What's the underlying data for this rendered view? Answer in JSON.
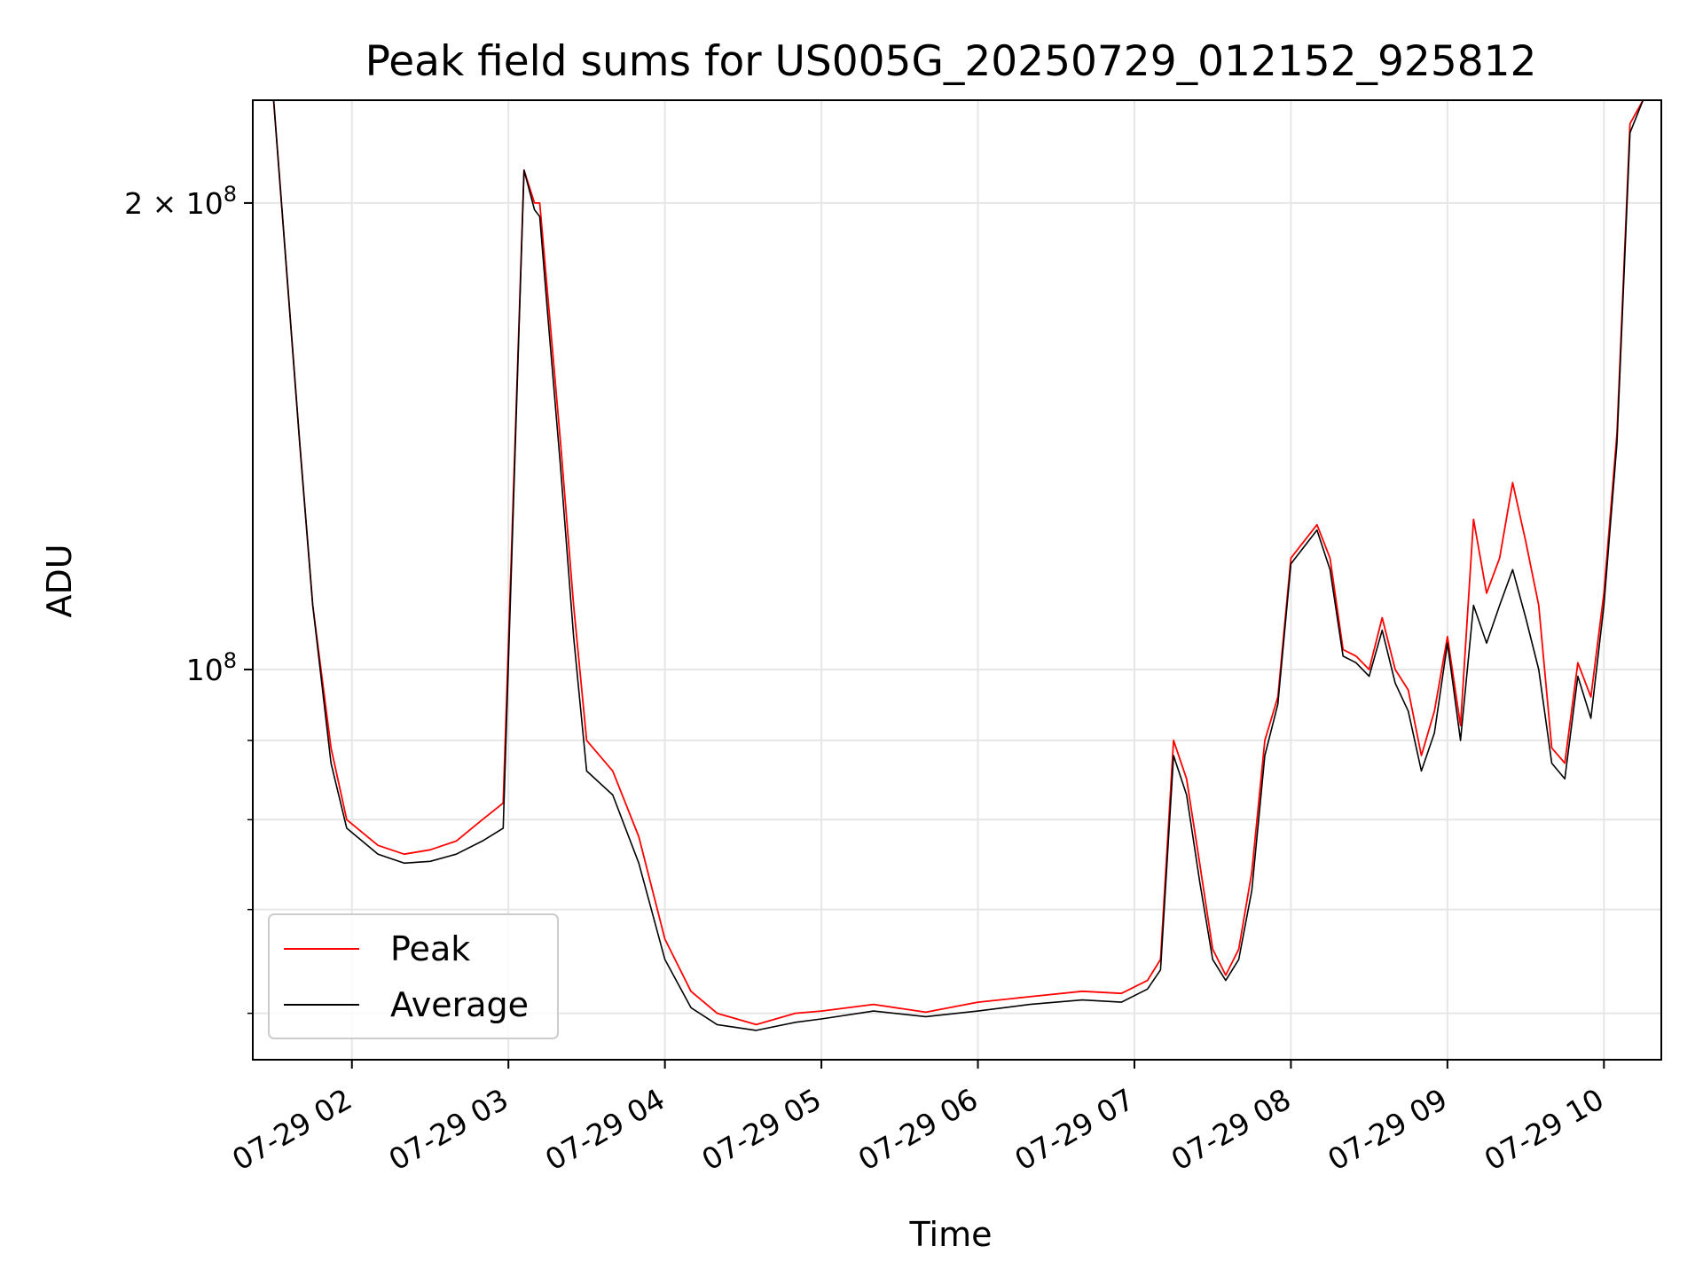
{
  "chart_data": {
    "type": "line",
    "title": "Peak field sums for US005G_20250729_012152_925812",
    "xlabel": "Time",
    "ylabel": "ADU",
    "x_range": [
      "2025-07-29 01:22",
      "2025-07-29 10:22"
    ],
    "y_scale": "log",
    "ylim": [
      56000000,
      233000000
    ],
    "grid": true,
    "legend_position": "lower-left",
    "x_ticks": [
      {
        "time": "2025-07-29 02:00",
        "label": "07-29 02"
      },
      {
        "time": "2025-07-29 03:00",
        "label": "07-29 03"
      },
      {
        "time": "2025-07-29 04:00",
        "label": "07-29 04"
      },
      {
        "time": "2025-07-29 05:00",
        "label": "07-29 05"
      },
      {
        "time": "2025-07-29 06:00",
        "label": "07-29 06"
      },
      {
        "time": "2025-07-29 07:00",
        "label": "07-29 07"
      },
      {
        "time": "2025-07-29 08:00",
        "label": "07-29 08"
      },
      {
        "time": "2025-07-29 09:00",
        "label": "07-29 09"
      },
      {
        "time": "2025-07-29 10:00",
        "label": "07-29 10"
      }
    ],
    "y_major_ticks": [
      {
        "value": 100000000,
        "mantissa": "",
        "exponent": "8",
        "base": "10"
      },
      {
        "value": 200000000,
        "mantissa": "2",
        "exponent": "8",
        "base": "10"
      }
    ],
    "y_minor_ticks": [
      60000000,
      70000000,
      80000000,
      90000000
    ],
    "series": [
      {
        "name": "Peak",
        "color": "#ff0000",
        "x": [
          "2025-07-29 01:22",
          "2025-07-29 01:30",
          "2025-07-29 01:34",
          "2025-07-29 01:40",
          "2025-07-29 01:45",
          "2025-07-29 01:52",
          "2025-07-29 01:58",
          "2025-07-29 02:10",
          "2025-07-29 02:20",
          "2025-07-29 02:30",
          "2025-07-29 02:40",
          "2025-07-29 02:50",
          "2025-07-29 02:58",
          "2025-07-29 03:06",
          "2025-07-29 03:10",
          "2025-07-29 03:12",
          "2025-07-29 03:15",
          "2025-07-29 03:20",
          "2025-07-29 03:25",
          "2025-07-29 03:30",
          "2025-07-29 03:40",
          "2025-07-29 03:50",
          "2025-07-29 04:00",
          "2025-07-29 04:10",
          "2025-07-29 04:20",
          "2025-07-29 04:35",
          "2025-07-29 04:50",
          "2025-07-29 05:00",
          "2025-07-29 05:20",
          "2025-07-29 05:40",
          "2025-07-29 06:00",
          "2025-07-29 06:20",
          "2025-07-29 06:40",
          "2025-07-29 06:55",
          "2025-07-29 07:05",
          "2025-07-29 07:10",
          "2025-07-29 07:15",
          "2025-07-29 07:20",
          "2025-07-29 07:25",
          "2025-07-29 07:30",
          "2025-07-29 07:35",
          "2025-07-29 07:40",
          "2025-07-29 07:45",
          "2025-07-29 07:50",
          "2025-07-29 07:55",
          "2025-07-29 08:00",
          "2025-07-29 08:10",
          "2025-07-29 08:15",
          "2025-07-29 08:20",
          "2025-07-29 08:25",
          "2025-07-29 08:30",
          "2025-07-29 08:35",
          "2025-07-29 08:40",
          "2025-07-29 08:45",
          "2025-07-29 08:50",
          "2025-07-29 08:55",
          "2025-07-29 09:00",
          "2025-07-29 09:05",
          "2025-07-29 09:10",
          "2025-07-29 09:15",
          "2025-07-29 09:20",
          "2025-07-29 09:25",
          "2025-07-29 09:30",
          "2025-07-29 09:35",
          "2025-07-29 09:40",
          "2025-07-29 09:45",
          "2025-07-29 09:50",
          "2025-07-29 09:55",
          "2025-07-29 10:00",
          "2025-07-29 10:05",
          "2025-07-29 10:10",
          "2025-07-29 10:15",
          "2025-07-29 10:22"
        ],
        "values": [
          233000000,
          233000000,
          190000000,
          140000000,
          110000000,
          89000000,
          80000000,
          77000000,
          76000000,
          76500000,
          77500000,
          80000000,
          82000000,
          210000000,
          200000000,
          200000000,
          175000000,
          140000000,
          110000000,
          90000000,
          86000000,
          78000000,
          67000000,
          62000000,
          60000000,
          59000000,
          60000000,
          60200000,
          60800000,
          60100000,
          61000000,
          61500000,
          62000000,
          61800000,
          63000000,
          65000000,
          90000000,
          85000000,
          75000000,
          66000000,
          63500000,
          66000000,
          74000000,
          90000000,
          96000000,
          118000000,
          124000000,
          118000000,
          103000000,
          102000000,
          100000000,
          108000000,
          100000000,
          97000000,
          88000000,
          94000000,
          105000000,
          92000000,
          125000000,
          112000000,
          118000000,
          132000000,
          121000000,
          110000000,
          89000000,
          87000000,
          101000000,
          96000000,
          112000000,
          142000000,
          225000000,
          233000000,
          233000000
        ]
      },
      {
        "name": "Average",
        "color": "#000000",
        "x": [
          "2025-07-29 01:22",
          "2025-07-29 01:30",
          "2025-07-29 01:34",
          "2025-07-29 01:40",
          "2025-07-29 01:45",
          "2025-07-29 01:52",
          "2025-07-29 01:58",
          "2025-07-29 02:10",
          "2025-07-29 02:20",
          "2025-07-29 02:30",
          "2025-07-29 02:40",
          "2025-07-29 02:50",
          "2025-07-29 02:58",
          "2025-07-29 03:06",
          "2025-07-29 03:10",
          "2025-07-29 03:12",
          "2025-07-29 03:15",
          "2025-07-29 03:20",
          "2025-07-29 03:25",
          "2025-07-29 03:30",
          "2025-07-29 03:40",
          "2025-07-29 03:50",
          "2025-07-29 04:00",
          "2025-07-29 04:10",
          "2025-07-29 04:20",
          "2025-07-29 04:35",
          "2025-07-29 04:50",
          "2025-07-29 05:00",
          "2025-07-29 05:20",
          "2025-07-29 05:40",
          "2025-07-29 06:00",
          "2025-07-29 06:20",
          "2025-07-29 06:40",
          "2025-07-29 06:55",
          "2025-07-29 07:05",
          "2025-07-29 07:10",
          "2025-07-29 07:15",
          "2025-07-29 07:20",
          "2025-07-29 07:25",
          "2025-07-29 07:30",
          "2025-07-29 07:35",
          "2025-07-29 07:40",
          "2025-07-29 07:45",
          "2025-07-29 07:50",
          "2025-07-29 07:55",
          "2025-07-29 08:00",
          "2025-07-29 08:10",
          "2025-07-29 08:15",
          "2025-07-29 08:20",
          "2025-07-29 08:25",
          "2025-07-29 08:30",
          "2025-07-29 08:35",
          "2025-07-29 08:40",
          "2025-07-29 08:45",
          "2025-07-29 08:50",
          "2025-07-29 08:55",
          "2025-07-29 09:00",
          "2025-07-29 09:05",
          "2025-07-29 09:10",
          "2025-07-29 09:15",
          "2025-07-29 09:20",
          "2025-07-29 09:25",
          "2025-07-29 09:30",
          "2025-07-29 09:35",
          "2025-07-29 09:40",
          "2025-07-29 09:45",
          "2025-07-29 09:50",
          "2025-07-29 09:55",
          "2025-07-29 10:00",
          "2025-07-29 10:05",
          "2025-07-29 10:10",
          "2025-07-29 10:15",
          "2025-07-29 10:22"
        ],
        "values": [
          233000000,
          233000000,
          190000000,
          140000000,
          110000000,
          87000000,
          79000000,
          76000000,
          75000000,
          75200000,
          76000000,
          77500000,
          79000000,
          210000000,
          198000000,
          196000000,
          170000000,
          135000000,
          105000000,
          86000000,
          83000000,
          75000000,
          65000000,
          60500000,
          59000000,
          58500000,
          59200000,
          59500000,
          60200000,
          59700000,
          60200000,
          60800000,
          61200000,
          61000000,
          62200000,
          64000000,
          88000000,
          83000000,
          73000000,
          65000000,
          63000000,
          65000000,
          72000000,
          88000000,
          95000000,
          117000000,
          123000000,
          116000000,
          102000000,
          101000000,
          99000000,
          106000000,
          98000000,
          94000000,
          86000000,
          91000000,
          104000000,
          90000000,
          110000000,
          104000000,
          110000000,
          116000000,
          108000000,
          100000000,
          87000000,
          85000000,
          99000000,
          93000000,
          110000000,
          140000000,
          222000000,
          233000000,
          233000000
        ]
      }
    ]
  }
}
